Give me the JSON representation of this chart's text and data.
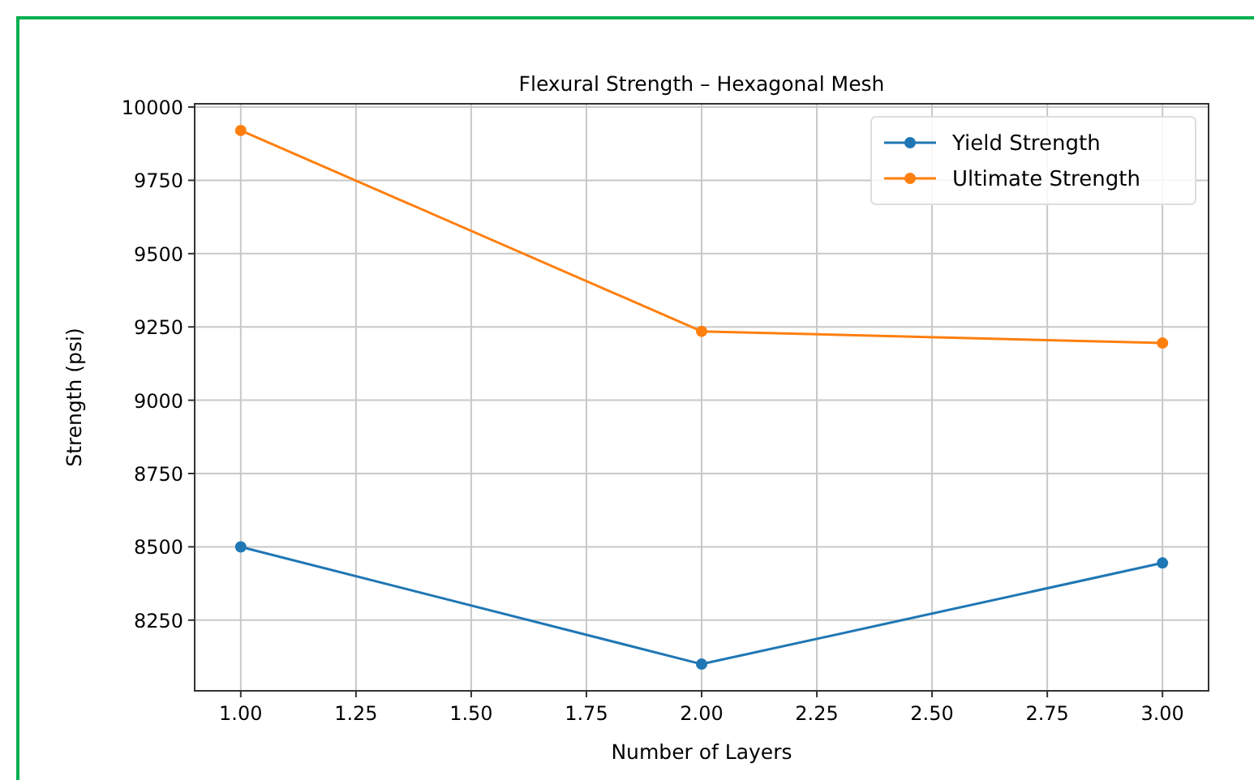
{
  "chart_data": {
    "type": "line",
    "title": "Flexural Strength – Hexagonal Mesh",
    "xlabel": "Number of Layers",
    "ylabel": "Strength (psi)",
    "x": [
      1,
      2,
      3
    ],
    "series": [
      {
        "name": "Yield Strength",
        "color": "#1f77b4",
        "values": [
          8500,
          8100,
          8445
        ]
      },
      {
        "name": "Ultimate Strength",
        "color": "#ff7f0e",
        "values": [
          9920,
          9235,
          9195
        ]
      }
    ],
    "xlim": [
      0.9,
      3.1
    ],
    "xticks": [
      {
        "value": 1,
        "label": "1.00"
      },
      {
        "value": 1.25,
        "label": "1.25"
      },
      {
        "value": 1.5,
        "label": "1.50"
      },
      {
        "value": 1.75,
        "label": "1.75"
      },
      {
        "value": 2,
        "label": "2.00"
      },
      {
        "value": 2.25,
        "label": "2.25"
      },
      {
        "value": 2.5,
        "label": "2.50"
      },
      {
        "value": 2.75,
        "label": "2.75"
      },
      {
        "value": 3,
        "label": "3.00"
      }
    ],
    "ylim": [
      8009,
      10011
    ],
    "yticks": [
      8250,
      8500,
      8750,
      9000,
      9250,
      9500,
      9750,
      10000
    ],
    "grid": true,
    "legend": "top right",
    "marker": "circle",
    "line_style": "solid"
  }
}
